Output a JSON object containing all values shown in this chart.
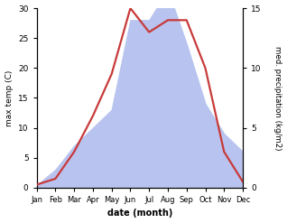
{
  "months": [
    "Jan",
    "Feb",
    "Mar",
    "Apr",
    "May",
    "Jun",
    "Jul",
    "Aug",
    "Sep",
    "Oct",
    "Nov",
    "Dec"
  ],
  "max_temp": [
    0.5,
    1.5,
    6.0,
    12.0,
    19.0,
    30.0,
    26.0,
    28.0,
    28.0,
    20.0,
    6.0,
    1.0
  ],
  "precipitation": [
    0.2,
    1.5,
    3.5,
    5.0,
    6.5,
    14.0,
    14.0,
    16.5,
    12.0,
    7.0,
    4.5,
    3.0
  ],
  "temp_color": "#c83a3a",
  "precip_fill_color": "#b8c4ef",
  "temp_ylim": [
    0,
    30
  ],
  "precip_ylim": [
    0,
    15
  ],
  "temp_yticks": [
    0,
    5,
    10,
    15,
    20,
    25,
    30
  ],
  "precip_yticks": [
    0,
    5,
    10,
    15
  ],
  "xlabel": "date (month)",
  "ylabel_left": "max temp (C)",
  "ylabel_right": "med. precipitation (kg/m2)",
  "background_color": "#ffffff",
  "line_width": 1.6
}
